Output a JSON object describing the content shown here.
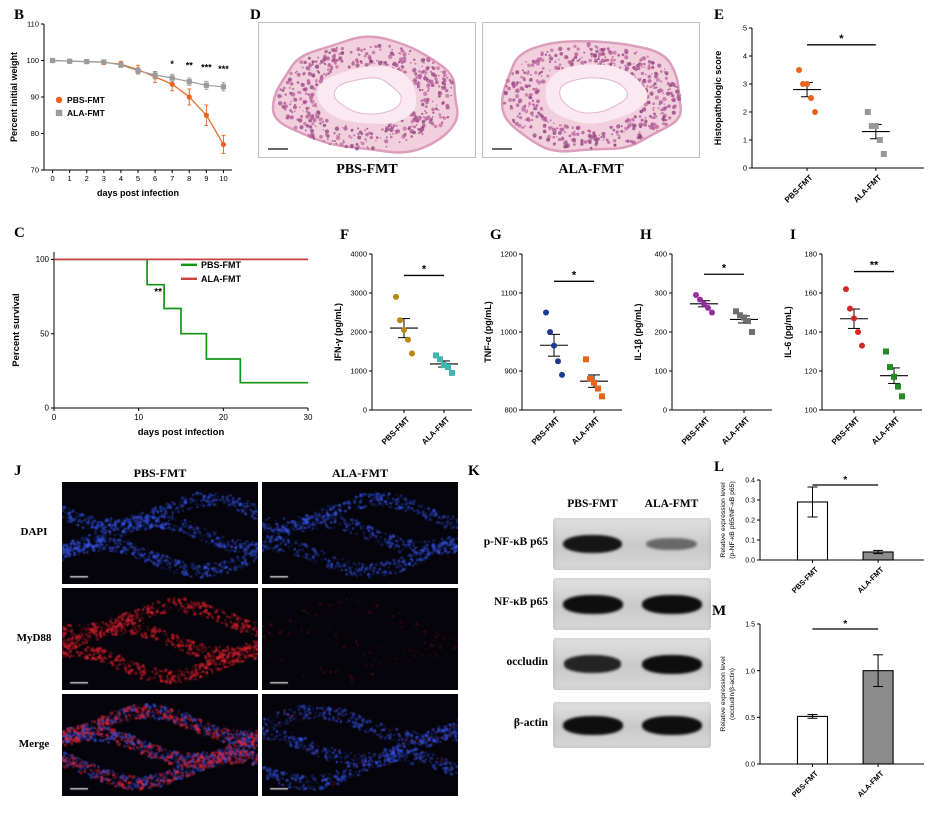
{
  "panel_labels": {
    "B": "B",
    "C": "C",
    "D": "D",
    "E": "E",
    "F": "F",
    "G": "G",
    "H": "H",
    "I": "I",
    "J": "J",
    "K": "K",
    "L": "L",
    "M": "M"
  },
  "histology": {
    "labels": [
      "PBS-FMT",
      "ALA-FMT"
    ]
  },
  "fluorescence": {
    "col_headers": [
      "PBS-FMT",
      "ALA-FMT"
    ],
    "row_labels": [
      "DAPI",
      "MyD88",
      "Merge"
    ],
    "cells": [
      [
        {
          "blue": 1.0,
          "red": 0
        },
        {
          "blue": 0.8,
          "red": 0
        }
      ],
      [
        {
          "blue": 0,
          "red": 1.0
        },
        {
          "blue": 0,
          "red": 0.15
        }
      ],
      [
        {
          "blue": 1.0,
          "red": 0.85
        },
        {
          "blue": 0.8,
          "red": 0.12
        }
      ]
    ]
  },
  "blots": {
    "col_headers": [
      "PBS-FMT",
      "ALA-FMT"
    ],
    "rows": [
      {
        "label": "p-NF-κB p65",
        "intensities": [
          0.95,
          0.38
        ]
      },
      {
        "label": "NF-κB p65",
        "intensities": [
          1.0,
          1.0
        ]
      },
      {
        "label": "occludin",
        "intensities": [
          0.85,
          1.0
        ]
      },
      {
        "label": "β-actin",
        "intensities": [
          1.0,
          1.0
        ]
      }
    ]
  },
  "chart_data": [
    {
      "panel": "B",
      "type": "line",
      "xlabel": "days post infection",
      "ylabel": "Percent initial weight",
      "x": [
        0,
        1,
        2,
        3,
        4,
        5,
        6,
        7,
        8,
        9,
        10
      ],
      "xlim": [
        -0.5,
        10.5
      ],
      "ylim": [
        70,
        110
      ],
      "yticks": [
        70,
        80,
        90,
        100,
        110
      ],
      "ytick_labels": [
        "70",
        "80",
        "90",
        "100",
        "110"
      ],
      "series": [
        {
          "name": "PBS-FMT",
          "color": "#E8641C",
          "marker": "circle",
          "values": [
            100,
            99.8,
            99.7,
            99.5,
            99,
            97.5,
            95.5,
            93.5,
            90,
            85,
            77
          ],
          "errors": [
            0.4,
            0.4,
            0.5,
            0.6,
            0.8,
            1.2,
            1.5,
            1.8,
            2.2,
            2.8,
            2.5
          ]
        },
        {
          "name": "ALA-FMT",
          "color": "#9B9B9B",
          "marker": "square",
          "values": [
            100,
            99.8,
            99.7,
            99.6,
            98.8,
            97.2,
            96,
            95.2,
            94.2,
            93.2,
            92.8
          ],
          "errors": [
            0.4,
            0.4,
            0.5,
            0.5,
            0.7,
            0.8,
            0.9,
            1.0,
            1.0,
            1.1,
            1.1
          ]
        }
      ],
      "annotations": [
        {
          "x": 7,
          "y": 98.2,
          "text": "*"
        },
        {
          "x": 8,
          "y": 97.8,
          "text": "**"
        },
        {
          "x": 9,
          "y": 97.2,
          "text": "***"
        },
        {
          "x": 10,
          "y": 96.8,
          "text": "***"
        }
      ],
      "legend": {
        "x": 0.08,
        "y": 0.52
      }
    },
    {
      "panel": "C",
      "type": "step",
      "xlabel": "days post infection",
      "ylabel": "Percent survival",
      "xlim": [
        0,
        30
      ],
      "xticks": [
        0,
        10,
        20,
        30
      ],
      "ylim": [
        0,
        105
      ],
      "yticks": [
        0,
        50,
        100
      ],
      "ytick_labels": [
        "0",
        "50",
        "100"
      ],
      "series": [
        {
          "name": "PBS-FMT",
          "color": "#129612",
          "points": [
            [
              0,
              100
            ],
            [
              11,
              100
            ],
            [
              11,
              83
            ],
            [
              13,
              83
            ],
            [
              13,
              67
            ],
            [
              15,
              67
            ],
            [
              15,
              50
            ],
            [
              18,
              50
            ],
            [
              18,
              33
            ],
            [
              22,
              33
            ],
            [
              22,
              17
            ],
            [
              30,
              17
            ]
          ]
        },
        {
          "name": "ALA-FMT",
          "color": "#C94040",
          "points": [
            [
              0,
              100
            ],
            [
              30,
              100
            ]
          ]
        }
      ],
      "sig": {
        "x": 12.3,
        "y": 76,
        "text": "**"
      },
      "legend": {
        "x": 0.5,
        "y": 0.05
      }
    },
    {
      "panel": "E",
      "type": "scatter",
      "ylabel": "Histopathologic score",
      "ylim": [
        0,
        5
      ],
      "yticks": [
        0,
        1,
        2,
        3,
        4,
        5
      ],
      "ytick_labels": [
        "0",
        "1",
        "2",
        "3",
        "4",
        "5"
      ],
      "groups": [
        {
          "name": "PBS-FMT",
          "color": "#E8641C",
          "marker": "circle",
          "values": [
            3.5,
            3.0,
            3.0,
            2.5,
            2.0
          ]
        },
        {
          "name": "ALA-FMT",
          "color": "#999999",
          "marker": "square",
          "values": [
            2.0,
            1.5,
            1.5,
            1.0,
            0.5
          ]
        }
      ],
      "sig": {
        "text": "*",
        "y": 4.4
      }
    },
    {
      "panel": "F",
      "type": "scatter",
      "ylabel": "IFN-γ (pg/mL)",
      "ylim": [
        0,
        4000
      ],
      "yticks": [
        0,
        1000,
        2000,
        3000,
        4000
      ],
      "ytick_labels": [
        "0",
        "1000",
        "2000",
        "3000",
        "4000"
      ],
      "groups": [
        {
          "name": "PBS-FMT",
          "color": "#B8860B",
          "marker": "circle",
          "values": [
            2900,
            2300,
            2050,
            1800,
            1450
          ]
        },
        {
          "name": "ALA-FMT",
          "color": "#41B6B0",
          "marker": "square",
          "values": [
            1400,
            1300,
            1150,
            1100,
            950
          ]
        }
      ],
      "sig": {
        "text": "*",
        "y": 3450
      }
    },
    {
      "panel": "G",
      "type": "scatter",
      "ylabel": "TNF-α (pg/mL)",
      "ylim": [
        800,
        1200
      ],
      "yticks": [
        800,
        900,
        1000,
        1100,
        1200
      ],
      "ytick_labels": [
        "800",
        "900",
        "1000",
        "1100",
        "1200"
      ],
      "groups": [
        {
          "name": "PBS-FMT",
          "color": "#1F3A93",
          "marker": "circle",
          "values": [
            1050,
            1000,
            965,
            925,
            890
          ]
        },
        {
          "name": "ALA-FMT",
          "color": "#E8641C",
          "marker": "square",
          "values": [
            930,
            880,
            870,
            855,
            835
          ]
        }
      ],
      "sig": {
        "text": "*",
        "y": 1130
      }
    },
    {
      "panel": "H",
      "type": "scatter",
      "ylabel": "IL-1β (pg/mL)",
      "ylim": [
        0,
        400
      ],
      "yticks": [
        0,
        100,
        200,
        300,
        400
      ],
      "ytick_labels": [
        "0",
        "100",
        "200",
        "300",
        "400"
      ],
      "groups": [
        {
          "name": "PBS-FMT",
          "color": "#952DA0",
          "marker": "circle",
          "values": [
            295,
            283,
            272,
            262,
            250
          ]
        },
        {
          "name": "ALA-FMT",
          "color": "#6E6E6E",
          "marker": "square",
          "values": [
            253,
            243,
            237,
            228,
            200
          ]
        }
      ],
      "sig": {
        "text": "*",
        "y": 348
      }
    },
    {
      "panel": "I",
      "type": "scatter",
      "ylabel": "IL-6 (pg/mL)",
      "ylim": [
        100,
        180
      ],
      "yticks": [
        100,
        120,
        140,
        160,
        180
      ],
      "ytick_labels": [
        "100",
        "120",
        "140",
        "160",
        "180"
      ],
      "groups": [
        {
          "name": "PBS-FMT",
          "color": "#D62728",
          "marker": "circle",
          "values": [
            162,
            152,
            147,
            140,
            133
          ]
        },
        {
          "name": "ALA-FMT",
          "color": "#228B22",
          "marker": "square",
          "values": [
            130,
            122,
            117,
            112,
            107
          ]
        }
      ],
      "sig": {
        "text": "**",
        "y": 171
      }
    },
    {
      "panel": "L",
      "type": "bar",
      "ylabel": [
        "Relative expression level",
        "(p-NF-κB p65/NF-κB p65)"
      ],
      "ylim": [
        0,
        0.4
      ],
      "yticks": [
        0,
        0.1,
        0.2,
        0.3,
        0.4
      ],
      "ytick_labels": [
        "0.0",
        "0.1",
        "0.2",
        "0.3",
        "0.4"
      ],
      "categories": [
        "PBS-FMT",
        "ALA-FMT"
      ],
      "values": [
        0.29,
        0.04
      ],
      "errors": [
        0.075,
        0.008
      ],
      "colors": [
        "#FFFFFF",
        "#8C8C8C"
      ],
      "sig": {
        "text": "*"
      }
    },
    {
      "panel": "M",
      "type": "bar",
      "ylabel": [
        "Relative expression level",
        "(occludin/β-actin)"
      ],
      "ylim": [
        0,
        1.5
      ],
      "yticks": [
        0,
        0.5,
        1.0,
        1.5
      ],
      "ytick_labels": [
        "0.0",
        "0.5",
        "1.0",
        "1.5"
      ],
      "categories": [
        "PBS-FMT",
        "ALA-FMT"
      ],
      "values": [
        0.51,
        1.0
      ],
      "errors": [
        0.02,
        0.17
      ],
      "colors": [
        "#FFFFFF",
        "#8C8C8C"
      ],
      "sig": {
        "text": "*"
      }
    }
  ]
}
